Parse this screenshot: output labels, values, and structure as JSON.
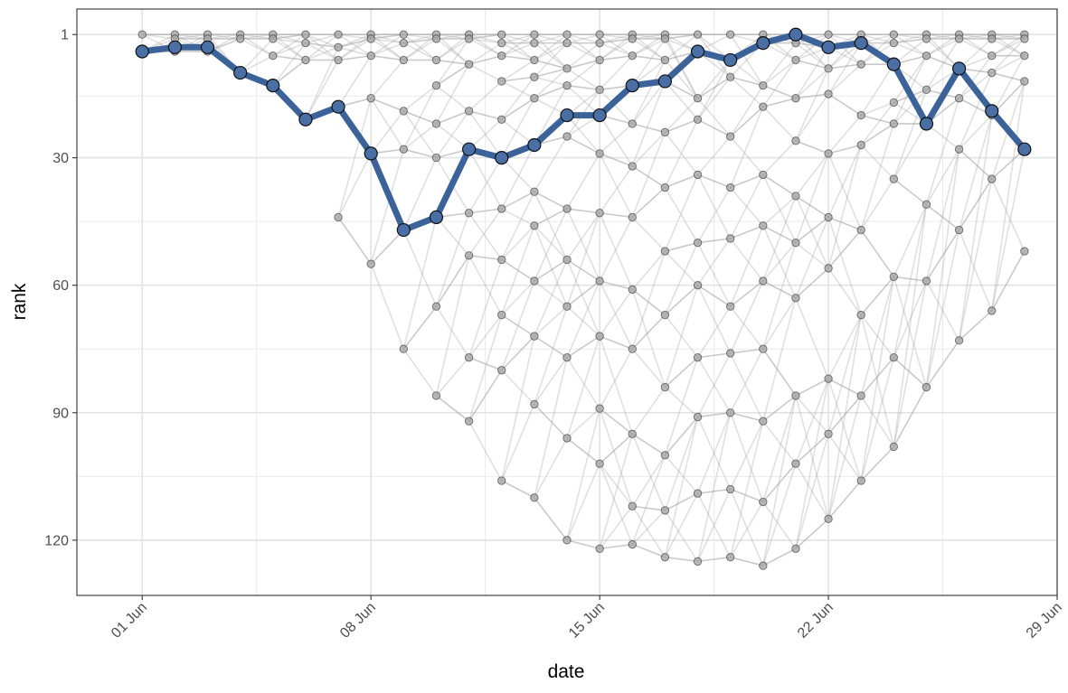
{
  "chart_data": {
    "type": "line",
    "title": "",
    "xlabel": "date",
    "ylabel": "rank",
    "x_ticks": [
      "01 Jun",
      "08 Jun",
      "15 Jun",
      "22 Jun",
      "29 Jun"
    ],
    "y_ticks": [
      1,
      30,
      60,
      90,
      120
    ],
    "xlim": [
      "2023-05-30",
      "2023-06-29"
    ],
    "ylim": [
      133,
      -5
    ],
    "y_reversed": true,
    "grid": true,
    "legend": "none",
    "highlight_series": {
      "color": "#3c6399",
      "x": [
        "2023-06-01",
        "2023-06-02",
        "2023-06-03",
        "2023-06-04",
        "2023-06-05",
        "2023-06-06",
        "2023-06-07",
        "2023-06-08",
        "2023-06-09",
        "2023-06-10",
        "2023-06-11",
        "2023-06-12",
        "2023-06-13",
        "2023-06-14",
        "2023-06-15",
        "2023-06-16",
        "2023-06-17",
        "2023-06-18",
        "2023-06-19",
        "2023-06-20",
        "2023-06-21",
        "2023-06-22",
        "2023-06-23",
        "2023-06-24",
        "2023-06-25",
        "2023-06-26",
        "2023-06-27",
        "2023-06-28"
      ],
      "values": [
        5,
        4,
        4,
        10,
        13,
        21,
        18,
        29,
        47,
        44,
        28,
        30,
        27,
        20,
        20,
        13,
        12,
        5,
        7,
        3,
        1,
        4,
        3,
        8,
        22,
        9,
        19,
        28
      ]
    },
    "background_series": {
      "color": "#9e9e9e",
      "x": [
        "2023-06-01",
        "2023-06-02",
        "2023-06-03",
        "2023-06-04",
        "2023-06-05",
        "2023-06-06",
        "2023-06-07",
        "2023-06-08",
        "2023-06-09",
        "2023-06-10",
        "2023-06-11",
        "2023-06-12",
        "2023-06-13",
        "2023-06-14",
        "2023-06-15",
        "2023-06-16",
        "2023-06-17",
        "2023-06-18",
        "2023-06-19",
        "2023-06-20",
        "2023-06-21",
        "2023-06-22",
        "2023-06-23",
        "2023-06-24",
        "2023-06-25",
        "2023-06-26",
        "2023-06-27",
        "2023-06-28"
      ],
      "rank_levels": [
        [
          1,
          5
        ],
        [
          1,
          2,
          5
        ],
        [
          1,
          2,
          5
        ],
        [
          1,
          2,
          10
        ],
        [
          1,
          2,
          6,
          13
        ],
        [
          1,
          3,
          7,
          21
        ],
        [
          1,
          4,
          7,
          18,
          44
        ],
        [
          1,
          2,
          6,
          16,
          29,
          55
        ],
        [
          1,
          3,
          7,
          19,
          28,
          47,
          75
        ],
        [
          1,
          2,
          7,
          13,
          22,
          30,
          44,
          65,
          86
        ],
        [
          1,
          2,
          8,
          19,
          28,
          43,
          53,
          77,
          92
        ],
        [
          1,
          3,
          6,
          12,
          21,
          30,
          42,
          54,
          67,
          80,
          106
        ],
        [
          1,
          3,
          7,
          11,
          16,
          27,
          38,
          46,
          59,
          72,
          88,
          110
        ],
        [
          1,
          3,
          9,
          13,
          20,
          25,
          42,
          54,
          65,
          77,
          96,
          120
        ],
        [
          1,
          3,
          7,
          14,
          20,
          29,
          43,
          59,
          72,
          89,
          102,
          122
        ],
        [
          1,
          2,
          6,
          13,
          22,
          32,
          44,
          61,
          75,
          95,
          112,
          121
        ],
        [
          1,
          2,
          7,
          12,
          24,
          37,
          52,
          67,
          84,
          100,
          113,
          124
        ],
        [
          1,
          5,
          16,
          21,
          34,
          50,
          60,
          77,
          91,
          109,
          125
        ],
        [
          1,
          7,
          11,
          25,
          37,
          49,
          65,
          76,
          90,
          108,
          124
        ],
        [
          1,
          3,
          13,
          18,
          34,
          46,
          59,
          75,
          92,
          111,
          126
        ],
        [
          1,
          3,
          7,
          16,
          26,
          39,
          50,
          63,
          86,
          102,
          122
        ],
        [
          1,
          4,
          9,
          15,
          29,
          44,
          56,
          82,
          95,
          115
        ],
        [
          1,
          3,
          8,
          20,
          27,
          47,
          67,
          86,
          106
        ],
        [
          1,
          3,
          8,
          17,
          22,
          35,
          58,
          77,
          98
        ],
        [
          1,
          2,
          6,
          14,
          22,
          41,
          59,
          84
        ],
        [
          1,
          2,
          9,
          16,
          28,
          47,
          73
        ],
        [
          1,
          2,
          6,
          10,
          20,
          35,
          66
        ],
        [
          1,
          2,
          6,
          12,
          28,
          52
        ]
      ]
    }
  }
}
